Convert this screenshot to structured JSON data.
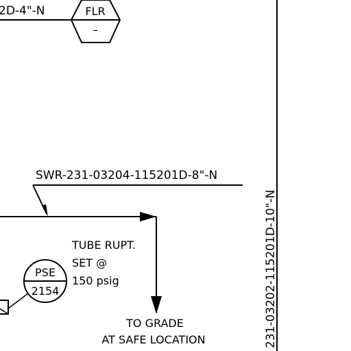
{
  "labels": {
    "top_line_tag": "2D-4\"-N",
    "hex_top": "FLR",
    "hex_bottom": "–",
    "swr_line_tag": "SWR-231-03204-115201D-8\"-N",
    "tube_rupt_1": "TUBE RUPT.",
    "tube_rupt_2": "SET @",
    "tube_rupt_3": "150 psig",
    "pse_top": "PSE",
    "pse_bottom": "2154",
    "to_grade_1": "TO GRADE",
    "to_grade_2": "AT SAFE LOCATION",
    "vertical_line_tag": "231-03202-115201D-10\"-N"
  }
}
